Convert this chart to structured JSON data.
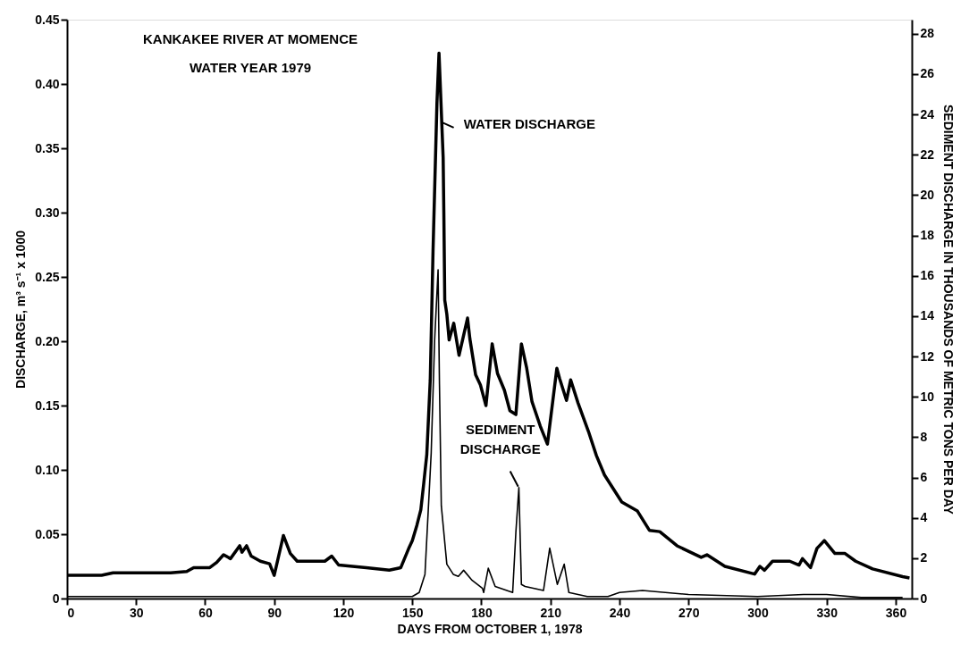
{
  "chart_data": {
    "type": "line",
    "title": "KANKAKEE RIVER AT MOMENCE",
    "subtitle": "WATER YEAR 1979",
    "xlabel": "DAYS FROM OCTOBER 1, 1978",
    "ylabel": "DISCHARGE, m³ s⁻¹ x 1000",
    "y2label": "SEDIMENT DISCHARGE IN THOUSANDS OF METRIC TONS PER DAY",
    "xlim": [
      0,
      367
    ],
    "xticks": [
      0,
      30,
      60,
      90,
      120,
      150,
      180,
      210,
      240,
      270,
      300,
      330,
      360
    ],
    "ylim": [
      0,
      0.45
    ],
    "yticks": [
      0,
      0.05,
      {
        "value": 0.1,
        "label": "0.10"
      },
      0.15,
      {
        "value": 0.2,
        "label": "0.20"
      },
      0.25,
      {
        "value": 0.3,
        "label": "0.30"
      },
      0.35,
      {
        "value": 0.4,
        "label": "0.40"
      },
      0.45
    ],
    "y2lim": [
      0,
      28.7
    ],
    "y2ticks": [
      0,
      2,
      4,
      6,
      8,
      10,
      12,
      14,
      16,
      18,
      20,
      22,
      24,
      26,
      28
    ],
    "grid": false,
    "annotations": [
      {
        "text": "WATER DISCHARGE",
        "x": 163,
        "y": 0.37
      },
      {
        "text": "SEDIMENT DISCHARGE",
        "x": 196,
        "y": 0.089
      }
    ],
    "series": [
      {
        "color": "#000000",
        "x": [
          0,
          8,
          15,
          20,
          30,
          45,
          52,
          55,
          62,
          65,
          68,
          71,
          75,
          76,
          78,
          80,
          84,
          88,
          90,
          94,
          97,
          100,
          112,
          115,
          118,
          130,
          140,
          145,
          148.7,
          150,
          152,
          153.7,
          155,
          156.3,
          157.8,
          159,
          160.7,
          161.6,
          163.4,
          163.7,
          164.1,
          165,
          166,
          168,
          170.3,
          174,
          175,
          177.5,
          179.6,
          182,
          184.7,
          187,
          190,
          192.4,
          195,
          197.4,
          199.7,
          202,
          205.6,
          208.7,
          212.8,
          214,
          217,
          218.8,
          222,
          226.5,
          230,
          233.5,
          241,
          247.8,
          253,
          257.5,
          265,
          275.5,
          278,
          285.8,
          298.7,
          301,
          303,
          306.5,
          314,
          318,
          319.5,
          323,
          325.8,
          329,
          333.6,
          338,
          342.6,
          350,
          363,
          366
        ],
        "values": [
          0.018,
          0.018,
          0.018,
          0.02,
          0.02,
          0.02,
          0.021,
          0.024,
          0.024,
          0.028,
          0.034,
          0.031,
          0.041,
          0.036,
          0.041,
          0.033,
          0.029,
          0.027,
          0.018,
          0.049,
          0.035,
          0.029,
          0.029,
          0.033,
          0.026,
          0.024,
          0.022,
          0.024,
          0.04,
          0.045,
          0.057,
          0.069,
          0.09,
          0.112,
          0.17,
          0.27,
          0.385,
          0.424,
          0.343,
          0.3,
          0.232,
          0.221,
          0.201,
          0.214,
          0.189,
          0.218,
          0.202,
          0.174,
          0.166,
          0.15,
          0.198,
          0.175,
          0.162,
          0.146,
          0.143,
          0.198,
          0.179,
          0.153,
          0.134,
          0.12,
          0.179,
          0.171,
          0.154,
          0.17,
          0.152,
          0.13,
          0.111,
          0.096,
          0.075,
          0.068,
          0.053,
          0.052,
          0.041,
          0.032,
          0.034,
          0.025,
          0.019,
          0.025,
          0.022,
          0.029,
          0.029,
          0.026,
          0.031,
          0.024,
          0.039,
          0.045,
          0.035,
          0.035,
          0.029,
          0.023,
          0.017,
          0.016
        ]
      },
      {
        "color": "#000000",
        "axis": "y2",
        "x": [
          0,
          30,
          60,
          90,
          120,
          150,
          153,
          155.5,
          158.2,
          159.7,
          161.2,
          161.8,
          162.6,
          165,
          167.8,
          170,
          172.3,
          176,
          180.5,
          181,
          183,
          186,
          193.6,
          195,
          196.3,
          197.4,
          199,
          207,
          209.7,
          213,
          216,
          218,
          226,
          235,
          240,
          250,
          270,
          300,
          320,
          330,
          345,
          363
        ],
        "values": [
          0.1,
          0.1,
          0.1,
          0.1,
          0.1,
          0.1,
          0.3,
          1.2,
          7.2,
          12.8,
          16.3,
          10.6,
          4.6,
          1.7,
          1.2,
          1.1,
          1.4,
          0.9,
          0.5,
          0.3,
          1.5,
          0.6,
          0.3,
          3.3,
          5.5,
          0.7,
          0.6,
          0.4,
          2.5,
          0.7,
          1.7,
          0.3,
          0.1,
          0.1,
          0.3,
          0.4,
          0.2,
          0.1,
          0.2,
          0.2,
          0.05,
          0.05
        ]
      }
    ]
  }
}
